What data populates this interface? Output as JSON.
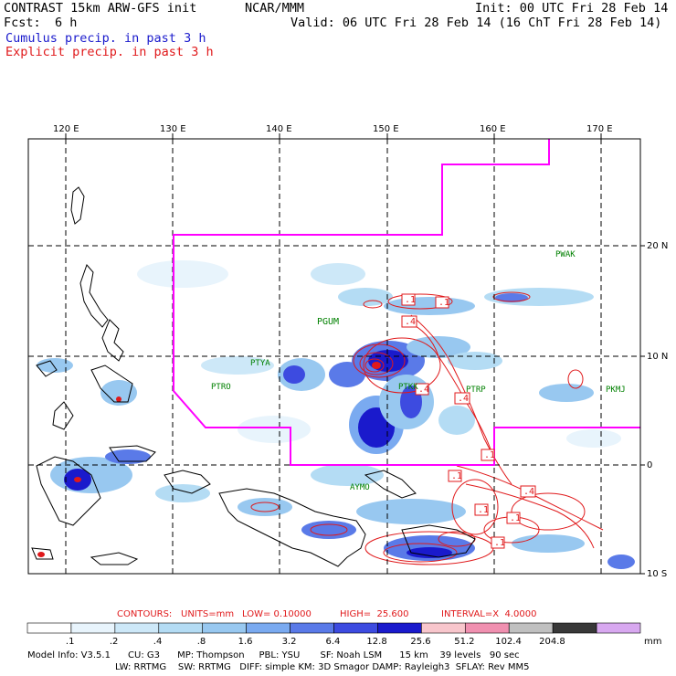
{
  "header": {
    "model": "CONTRAST 15km ARW-GFS init",
    "org": "NCAR/MMM",
    "init": "Init: 00 UTC Fri 28 Feb 14",
    "fcst_label": "Fcst:",
    "fcst_value": "6 h",
    "valid": "Valid: 06 UTC Fri 28 Feb 14 (16 ChT Fri 28 Feb 14)",
    "cumulus_legend": "Cumulus precip. in past 3 h",
    "explicit_legend": "Explicit precip. in past 3 h"
  },
  "colors": {
    "cumulus": "#1a1acc",
    "explicit": "#e0191b",
    "boundary": "#ff00ff",
    "station": "#008000"
  },
  "lon_labels": [
    "120 E",
    "130 E",
    "140 E",
    "150 E",
    "160 E",
    "170 E"
  ],
  "lat_labels": [
    "20 N",
    "10 N",
    "0",
    "10 S"
  ],
  "stations": [
    "PWAK",
    "PGUM",
    "PTYA",
    "PTRO",
    "PTKK",
    "PTRP",
    "PKMJ",
    "AYMO"
  ],
  "contour_labels": [
    ".1",
    ".4",
    ".1",
    ".4",
    ".4",
    ".1",
    ".1",
    ".4",
    ".1",
    ".1",
    ".1"
  ],
  "contour_info": {
    "title": "CONTOURS:",
    "units": "UNITS=mm",
    "low": "LOW= 0.10000",
    "high": "HIGH=  25.600",
    "interval": "INTERVAL=X  4.0000"
  },
  "scale": {
    "labels": [
      ".1",
      ".2",
      ".4",
      ".8",
      "1.6",
      "3.2",
      "6.4",
      "12.8",
      "25.6",
      "51.2",
      "102.4",
      "204.8"
    ],
    "unit": "mm",
    "colors": [
      "#ffffff",
      "#e8f4fc",
      "#cde8f8",
      "#b4dcf4",
      "#98c8f0",
      "#7aaaf0",
      "#5a7ae8",
      "#3d4be0",
      "#1a1acc",
      "#f8c6cc",
      "#f090b0",
      "#c0c0c0",
      "#383838",
      "#d8a8f0"
    ]
  },
  "model_info": {
    "line1": "Model Info: V3.5.1      CU: G3      MP: Thompson     PBL: YSU       SF: Noah LSM      15 km    39 levels   90 sec",
    "line2": "LW: RRTMG    SW: RRTMG   DIFF: simple KM: 3D Smagor DAMP: Rayleigh3  SFLAY: Rev MM5"
  }
}
